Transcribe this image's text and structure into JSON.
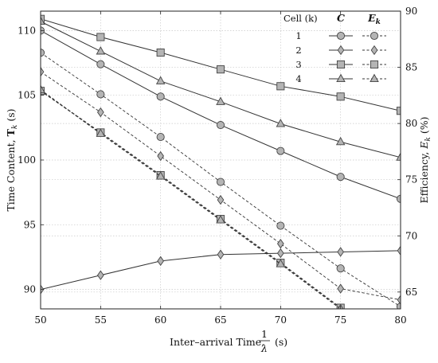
{
  "chart_data": {
    "type": "line",
    "x": [
      50,
      55,
      60,
      65,
      70,
      75,
      80
    ],
    "xlabel": "Inter–arrival Time, 1/λ (s)",
    "xlabel_prefix": "Inter–arrival Time,",
    "xlabel_num": "1",
    "xlabel_den": "λ",
    "xlabel_unit": "(s)",
    "xlim": [
      50,
      80
    ],
    "xticks": [
      "50",
      "55",
      "60",
      "65",
      "70",
      "75",
      "80"
    ],
    "ylabel_left": "Time Content, T_k (s)",
    "ylabel_left_text": "Time Content, ",
    "ylabel_left_sym": "T",
    "ylabel_left_sub": "k",
    "ylabel_left_unit": " (s)",
    "ylim_left": [
      88.5,
      111.5
    ],
    "yticks_left": [
      "90",
      "95",
      "100",
      "105",
      "110"
    ],
    "ylabel_right": "Efficiency, E_k (%)",
    "ylabel_right_text": "Efficiency, ",
    "ylabel_right_sym": "E",
    "ylabel_right_sub": "k",
    "ylabel_right_unit": " (%)",
    "ylim_right": [
      63.5,
      90
    ],
    "yticks_right": [
      "65",
      "70",
      "75",
      "80",
      "85",
      "90"
    ],
    "grid": true,
    "legend": {
      "position": "top-right",
      "header_cell": "Cell (k)",
      "header_c": "C",
      "header_e_sym": "E",
      "header_e_sub": "k",
      "entries": [
        "1",
        "2",
        "3",
        "4"
      ]
    },
    "series_c": [
      {
        "cell": "1",
        "marker": "circle",
        "values": [
          110.0,
          107.4,
          104.9,
          102.7,
          100.7,
          98.7,
          97.0
        ]
      },
      {
        "cell": "2",
        "marker": "diamond",
        "values": [
          90.0,
          91.1,
          92.2,
          92.7,
          92.8,
          92.9,
          93.0
        ]
      },
      {
        "cell": "3",
        "marker": "square",
        "values": [
          110.9,
          109.5,
          108.3,
          107.0,
          105.7,
          104.9,
          103.8
        ]
      },
      {
        "cell": "4",
        "marker": "triangle",
        "values": [
          110.7,
          108.4,
          106.1,
          104.5,
          102.8,
          101.4,
          100.2
        ]
      }
    ],
    "series_e": [
      {
        "cell": "1",
        "marker": "circle",
        "values": [
          86.3,
          82.6,
          78.8,
          74.8,
          70.9,
          67.1,
          63.7
        ]
      },
      {
        "cell": "2",
        "marker": "diamond",
        "values": [
          84.6,
          81.0,
          77.1,
          73.2,
          69.3,
          65.3,
          64.3
        ]
      },
      {
        "cell": "3",
        "marker": "square",
        "values": [
          82.9,
          79.2,
          75.4,
          71.5,
          67.6,
          63.6,
          61.8
        ]
      },
      {
        "cell": "4",
        "marker": "triangle",
        "values": [
          83.0,
          79.1,
          75.3,
          71.4,
          67.5,
          63.5,
          61.8
        ]
      }
    ],
    "colors": {
      "line": "#333333",
      "marker_fill": "#b4b4b4",
      "marker_stroke": "#444444",
      "grid": "#c8c8c8"
    }
  }
}
